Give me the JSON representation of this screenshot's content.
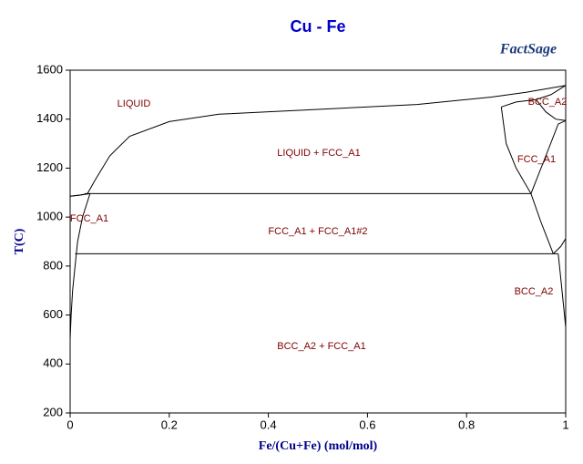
{
  "chart_data": {
    "type": "line",
    "title": "Cu - Fe",
    "xlabel": "Fe/(Cu+Fe) (mol/mol)",
    "ylabel": "T(C)",
    "xlim": [
      0,
      1
    ],
    "ylim": [
      200,
      1600
    ],
    "xticks": [
      0,
      0.2,
      0.4,
      0.6,
      0.8,
      1
    ],
    "yticks": [
      200,
      400,
      600,
      800,
      1000,
      1200,
      1400,
      1600
    ],
    "annotations": [
      "LIQUID",
      "LIQUID + FCC_A1",
      "BCC_A2",
      "FCC_A1",
      "FCC_A1",
      "FCC_A1 + FCC_A1#2",
      "BCC_A2",
      "BCC_A2 + FCC_A1"
    ],
    "annotation_color": "#800000",
    "series": [
      {
        "color": "#000000",
        "x": [
          0,
          0.02,
          0.035,
          0.05,
          0.08,
          0.12,
          0.2,
          0.3,
          0.5,
          0.7,
          0.85,
          0.92,
          1
        ],
        "values": [
          1085,
          1090,
          1096,
          1150,
          1250,
          1330,
          1390,
          1420,
          1440,
          1460,
          1490,
          1510,
          1538
        ]
      },
      {
        "color": "#000000",
        "x": [
          0,
          0.02,
          0.04
        ],
        "values": [
          1085,
          1090,
          1096
        ]
      },
      {
        "color": "#000000",
        "x": [
          0.04,
          0.025,
          0.015,
          0.01,
          0.005,
          0.002,
          0
        ],
        "values": [
          1096,
          1000,
          900,
          800,
          700,
          600,
          500
        ]
      },
      {
        "color": "#000000",
        "x": [
          0.03,
          0.93
        ],
        "values": [
          1096,
          1096
        ]
      },
      {
        "color": "#000000",
        "x": [
          0.01,
          0.985
        ],
        "values": [
          850,
          850
        ]
      },
      {
        "color": "#000000",
        "x": [
          0.87,
          0.88,
          0.9,
          0.93,
          0.95,
          0.975
        ],
        "values": [
          1450,
          1300,
          1200,
          1096,
          980,
          850
        ]
      },
      {
        "color": "#000000",
        "x": [
          0.87,
          0.9,
          0.94,
          0.97,
          1
        ],
        "values": [
          1450,
          1470,
          1480,
          1500,
          1538
        ]
      },
      {
        "color": "#000000",
        "x": [
          0.94,
          0.96,
          0.98,
          1
        ],
        "values": [
          1480,
          1430,
          1400,
          1394
        ]
      },
      {
        "color": "#000000",
        "x": [
          0.93,
          0.96,
          0.985,
          1
        ],
        "values": [
          1096,
          1250,
          1380,
          1394
        ]
      },
      {
        "color": "#000000",
        "x": [
          0.975,
          0.99,
          1
        ],
        "values": [
          850,
          880,
          912
        ]
      },
      {
        "color": "#000000",
        "x": [
          0.985,
          0.99,
          0.995,
          1
        ],
        "values": [
          850,
          750,
          650,
          550
        ]
      }
    ]
  },
  "logo": "FactSage"
}
